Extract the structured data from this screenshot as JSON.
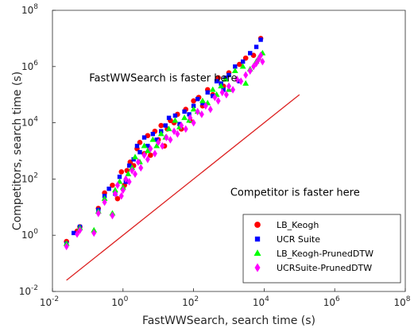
{
  "chart_data": {
    "type": "scatter",
    "x_scale": "log",
    "y_scale": "log",
    "xlim": [
      0.01,
      100000000
    ],
    "ylim": [
      0.01,
      100000000
    ],
    "x_ticks": [
      0.01,
      1,
      100,
      10000,
      1000000,
      100000000
    ],
    "y_ticks": [
      0.01,
      1,
      100,
      10000,
      1000000,
      100000000
    ],
    "x_tick_labels": [
      {
        "base": "10",
        "exp": "-2"
      },
      {
        "base": "10",
        "exp": "0"
      },
      {
        "base": "10",
        "exp": "2"
      },
      {
        "base": "10",
        "exp": "4"
      },
      {
        "base": "10",
        "exp": "6"
      },
      {
        "base": "10",
        "exp": "8"
      }
    ],
    "y_tick_labels": [
      {
        "base": "10",
        "exp": "-2"
      },
      {
        "base": "10",
        "exp": "0"
      },
      {
        "base": "10",
        "exp": "2"
      },
      {
        "base": "10",
        "exp": "4"
      },
      {
        "base": "10",
        "exp": "6"
      },
      {
        "base": "10",
        "exp": "8"
      }
    ],
    "xlabel": "FastWWSearch, search time (s)",
    "ylabel": "Competitors, search time (s)",
    "grid": false,
    "legend_position": "bottom-right",
    "reference_line": {
      "x": [
        0.025,
        100000
      ],
      "y": [
        0.025,
        100000
      ],
      "color": "#dd2222"
    },
    "annotations": [
      {
        "text": "FastWWSearch is faster here",
        "x": 0.11,
        "y": 300000
      },
      {
        "text": "Competitor is faster here",
        "x": 1100,
        "y": 25
      }
    ],
    "series": [
      {
        "name": "LB_Keogh",
        "color": "#ff0000",
        "marker": "circle",
        "points": [
          [
            0.025,
            0.6
          ],
          [
            0.05,
            1.4
          ],
          [
            0.06,
            2
          ],
          [
            0.2,
            9
          ],
          [
            0.3,
            32
          ],
          [
            0.5,
            60
          ],
          [
            0.7,
            20
          ],
          [
            0.9,
            180
          ],
          [
            1.1,
            60
          ],
          [
            1.3,
            200
          ],
          [
            1.6,
            400
          ],
          [
            2,
            300
          ],
          [
            2.5,
            1200
          ],
          [
            3,
            2000
          ],
          [
            4,
            800
          ],
          [
            5,
            3500
          ],
          [
            6,
            700
          ],
          [
            8,
            5000
          ],
          [
            10,
            2500
          ],
          [
            12,
            8000
          ],
          [
            15,
            1500
          ],
          [
            18,
            6000
          ],
          [
            22,
            12000
          ],
          [
            28,
            10000
          ],
          [
            35,
            20000
          ],
          [
            45,
            6000
          ],
          [
            60,
            30000
          ],
          [
            80,
            12000
          ],
          [
            100,
            60000
          ],
          [
            140,
            80000
          ],
          [
            180,
            40000
          ],
          [
            250,
            150000
          ],
          [
            350,
            100000
          ],
          [
            500,
            400000
          ],
          [
            700,
            200000
          ],
          [
            1000,
            600000
          ],
          [
            2000,
            1200000
          ],
          [
            3000,
            2000000
          ],
          [
            5000,
            2500000
          ],
          [
            8000,
            10000000
          ]
        ]
      },
      {
        "name": "UCR Suite",
        "color": "#0000ff",
        "marker": "square",
        "points": [
          [
            0.025,
            0.5
          ],
          [
            0.04,
            1.2
          ],
          [
            0.06,
            2
          ],
          [
            0.2,
            8
          ],
          [
            0.3,
            25
          ],
          [
            0.4,
            45
          ],
          [
            0.6,
            30
          ],
          [
            0.8,
            120
          ],
          [
            1.2,
            80
          ],
          [
            1.5,
            300
          ],
          [
            2,
            500
          ],
          [
            2.5,
            1500
          ],
          [
            3,
            900
          ],
          [
            4,
            3000
          ],
          [
            5,
            1500
          ],
          [
            7,
            4000
          ],
          [
            9,
            2500
          ],
          [
            12,
            5000
          ],
          [
            16,
            8000
          ],
          [
            20,
            15000
          ],
          [
            30,
            18000
          ],
          [
            40,
            9000
          ],
          [
            55,
            25000
          ],
          [
            75,
            20000
          ],
          [
            100,
            40000
          ],
          [
            130,
            70000
          ],
          [
            180,
            50000
          ],
          [
            250,
            120000
          ],
          [
            350,
            90000
          ],
          [
            450,
            300000
          ],
          [
            600,
            250000
          ],
          [
            800,
            400000
          ],
          [
            1000,
            500000
          ],
          [
            1500,
            1000000
          ],
          [
            2500,
            1500000
          ],
          [
            4000,
            3000000
          ],
          [
            6000,
            5000000
          ],
          [
            8000,
            9000000
          ],
          [
            2000,
            300000
          ],
          [
            700,
            150000
          ]
        ]
      },
      {
        "name": "LB_Keogh-PrunedDTW",
        "color": "#00ff00",
        "marker": "triangle",
        "points": [
          [
            0.025,
            0.5
          ],
          [
            0.06,
            1.8
          ],
          [
            0.15,
            1.5
          ],
          [
            0.2,
            7
          ],
          [
            0.3,
            20
          ],
          [
            0.5,
            6
          ],
          [
            0.6,
            40
          ],
          [
            0.8,
            80
          ],
          [
            1,
            50
          ],
          [
            1.4,
            150
          ],
          [
            1.8,
            250
          ],
          [
            2.2,
            600
          ],
          [
            3,
            400
          ],
          [
            4,
            1500
          ],
          [
            5,
            1000
          ],
          [
            7,
            2500
          ],
          [
            9,
            1500
          ],
          [
            12,
            4000
          ],
          [
            16,
            3000
          ],
          [
            20,
            6000
          ],
          [
            30,
            12000
          ],
          [
            40,
            7000
          ],
          [
            55,
            15000
          ],
          [
            75,
            12000
          ],
          [
            100,
            30000
          ],
          [
            130,
            25000
          ],
          [
            180,
            60000
          ],
          [
            250,
            50000
          ],
          [
            350,
            150000
          ],
          [
            450,
            100000
          ],
          [
            600,
            200000
          ],
          [
            800,
            350000
          ],
          [
            1000,
            150000
          ],
          [
            1500,
            700000
          ],
          [
            2500,
            1000000
          ],
          [
            4000,
            800000
          ],
          [
            6000,
            1500000
          ],
          [
            7000,
            2000000
          ],
          [
            9000,
            3000000
          ],
          [
            3000,
            250000
          ]
        ]
      },
      {
        "name": "UCRSuite-PrunedDTW",
        "color": "#ff00ff",
        "marker": "diamond",
        "points": [
          [
            0.025,
            0.4
          ],
          [
            0.05,
            1.1
          ],
          [
            0.06,
            1.5
          ],
          [
            0.15,
            1.2
          ],
          [
            0.2,
            6
          ],
          [
            0.3,
            15
          ],
          [
            0.5,
            5
          ],
          [
            0.6,
            30
          ],
          [
            0.7,
            60
          ],
          [
            0.9,
            25
          ],
          [
            1,
            40
          ],
          [
            1.2,
            100
          ],
          [
            1.5,
            80
          ],
          [
            1.8,
            200
          ],
          [
            2.2,
            150
          ],
          [
            2.7,
            400
          ],
          [
            3.2,
            250
          ],
          [
            4,
            700
          ],
          [
            5,
            500
          ],
          [
            6,
            1200
          ],
          [
            8,
            800
          ],
          [
            10,
            2000
          ],
          [
            13,
            1500
          ],
          [
            17,
            3000
          ],
          [
            22,
            2500
          ],
          [
            28,
            5000
          ],
          [
            35,
            4000
          ],
          [
            45,
            8000
          ],
          [
            60,
            6000
          ],
          [
            80,
            15000
          ],
          [
            100,
            10000
          ],
          [
            130,
            25000
          ],
          [
            170,
            20000
          ],
          [
            220,
            40000
          ],
          [
            300,
            30000
          ],
          [
            400,
            80000
          ],
          [
            500,
            60000
          ],
          [
            650,
            120000
          ],
          [
            850,
            100000
          ],
          [
            1000,
            200000
          ],
          [
            1300,
            150000
          ],
          [
            1700,
            350000
          ],
          [
            2200,
            300000
          ],
          [
            3000,
            500000
          ],
          [
            4000,
            700000
          ],
          [
            5000,
            1000000
          ],
          [
            6000,
            1300000
          ],
          [
            7000,
            1800000
          ],
          [
            8000,
            2500000
          ],
          [
            9000,
            1500000
          ]
        ]
      }
    ]
  }
}
